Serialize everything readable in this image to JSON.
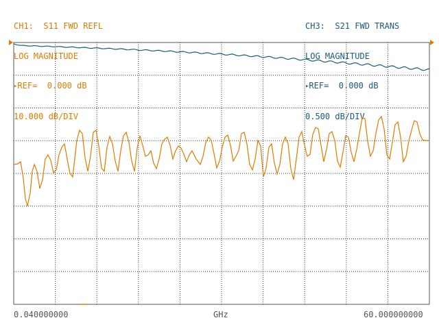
{
  "ch1": {
    "title": "CH1:  S11 FWD REFL",
    "format": "LOG MAGNITUDE",
    "ref_marker": "▸",
    "ref": "REF=  0.000 dB",
    "scale": "10.000 dB/DIV",
    "color": "#e07b00"
  },
  "ch3": {
    "title": "CH3:  S21 FWD TRANS",
    "format": "LOG MAGNITUDE",
    "ref_marker": "▸",
    "ref": "REF=  0.000 dB",
    "scale": "0.500 dB/DIV",
    "color": "#1a5a7a"
  },
  "footer": {
    "start": "0.040000000",
    "unit": "GHz",
    "stop": "60.000000000"
  },
  "colors": {
    "grid": "#333333",
    "graticule": "#555555",
    "ref_marker": "#e07b00"
  }
}
